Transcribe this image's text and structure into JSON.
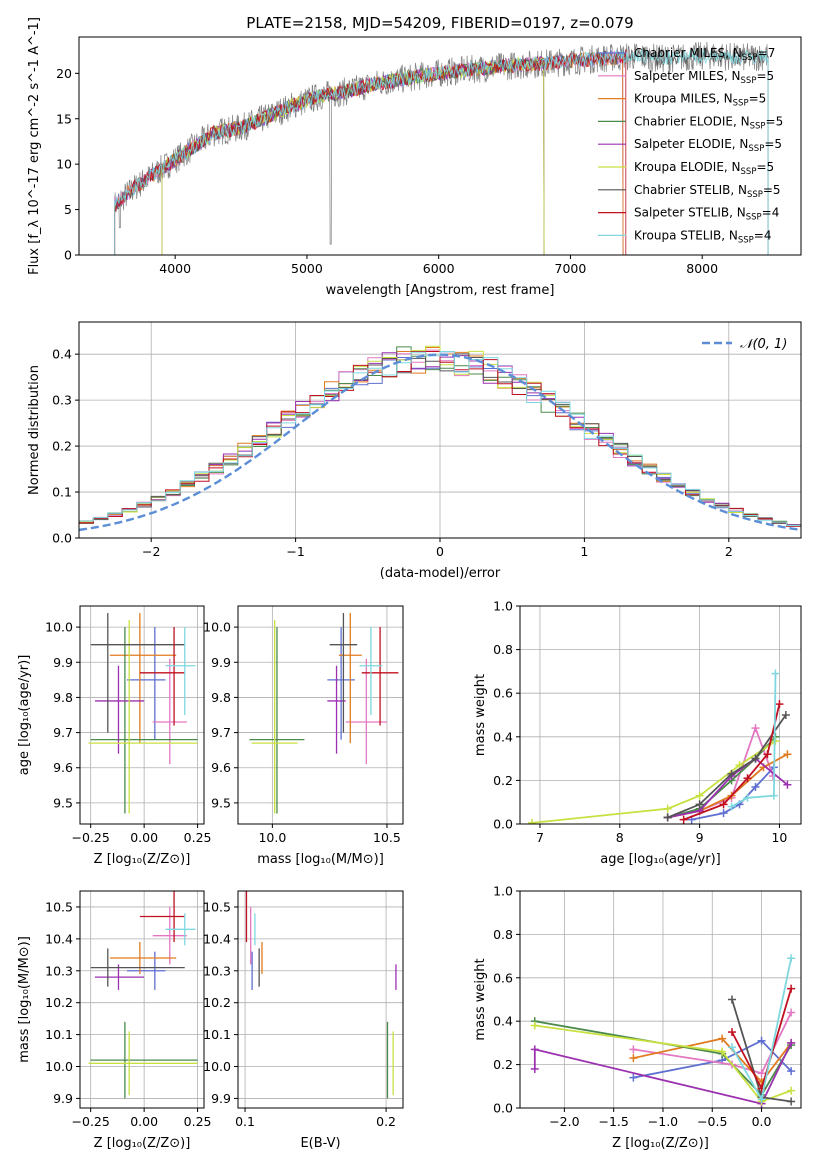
{
  "figure_title": "PLATE=2158, MJD=54209, FIBERID=0197, z=0.079",
  "colors": {
    "Chabrier MILES": "#5f6fd0",
    "Salpeter MILES": "#e377c2",
    "Kroupa MILES": "#e07b20",
    "Chabrier ELODIE": "#4a8a4a",
    "Salpeter ELODIE": "#9b30b0",
    "Kroupa ELODIE": "#c8e040",
    "Chabrier STELIB": "#555555",
    "Salpeter STELIB": "#c01020",
    "Kroupa STELIB": "#7fd8e0",
    "gaussian": "#5b8ed6"
  },
  "chart_data": [
    {
      "id": "spectrum",
      "type": "line",
      "xlabel": "wavelength [Angstrom, rest frame]",
      "ylabel": "Flux [f_λ 10^-17 erg cm^-2 s^-1 A^-1]",
      "xlim": [
        3270,
        8750
      ],
      "ylim": [
        0,
        24
      ],
      "xticks": [
        4000,
        5000,
        6000,
        7000,
        8000
      ],
      "yticks": [
        0,
        5,
        10,
        15,
        20
      ],
      "grid": false,
      "legend_position": "right",
      "legend": [
        "Chabrier MILES, N_SSP=7",
        "Salpeter MILES, N_SSP=5",
        "Kroupa MILES, N_SSP=5",
        "Chabrier ELODIE, N_SSP=5",
        "Salpeter ELODIE, N_SSP=5",
        "Kroupa ELODIE, N_SSP=5",
        "Chabrier STELIB, N_SSP=5",
        "Salpeter STELIB, N_SSP=4",
        "Kroupa STELIB, N_SSP=4"
      ],
      "data_continuum": [
        [
          3540,
          5.5
        ],
        [
          3700,
          7.5
        ],
        [
          3900,
          9.5
        ],
        [
          4100,
          11.5
        ],
        [
          4300,
          13.5
        ],
        [
          4500,
          14.0
        ],
        [
          4700,
          15.2
        ],
        [
          4900,
          16.5
        ],
        [
          5100,
          17.5
        ],
        [
          5300,
          18.0
        ],
        [
          5500,
          18.8
        ],
        [
          5700,
          19.3
        ],
        [
          5900,
          19.8
        ],
        [
          6100,
          20.2
        ],
        [
          6300,
          20.5
        ],
        [
          6500,
          20.8
        ],
        [
          6700,
          21.0
        ],
        [
          6900,
          21.2
        ],
        [
          7100,
          21.5
        ],
        [
          7300,
          21.7
        ],
        [
          7500,
          21.9
        ],
        [
          7700,
          21.6
        ],
        [
          7900,
          21.8
        ],
        [
          8100,
          22.0
        ],
        [
          8300,
          21.7
        ],
        [
          8500,
          21.9
        ]
      ]
    },
    {
      "id": "residuals",
      "type": "histogram",
      "xlabel": "(data-model)/error",
      "ylabel": "Normed distribution",
      "xlim": [
        -2.5,
        2.5
      ],
      "ylim": [
        0,
        0.47
      ],
      "xticks": [
        -2,
        -1,
        0,
        1,
        2
      ],
      "yticks": [
        0.0,
        0.1,
        0.2,
        0.3,
        0.4
      ],
      "grid": true,
      "legend_position": "top-right",
      "legend": [
        "𝒩(0, 1)"
      ],
      "bin_width": 0.1
    },
    {
      "id": "age_vs_Z",
      "type": "errorbar",
      "xlabel": "Z [log10(Z/Z⊙)]",
      "ylabel": "age  [log10(age/yr)]",
      "xlim": [
        -0.3,
        0.28
      ],
      "ylim": [
        9.44,
        10.06
      ],
      "xticks": [
        -0.25,
        0.0,
        0.25
      ],
      "yticks": [
        9.5,
        9.6,
        9.7,
        9.8,
        9.9,
        10.0
      ],
      "grid": true,
      "points": [
        {
          "model": "Chabrier MILES",
          "x": 0.05,
          "xerr": [
            0.13,
            0.05
          ],
          "y": 9.85,
          "yerr": [
            0.17,
            0.15
          ]
        },
        {
          "model": "Salpeter MILES",
          "x": 0.12,
          "xerr": [
            0.08,
            0.08
          ],
          "y": 9.73,
          "yerr": [
            0.12,
            0.18
          ]
        },
        {
          "model": "Kroupa MILES",
          "x": -0.02,
          "xerr": [
            0.14,
            0.17
          ],
          "y": 9.92,
          "yerr": [
            0.25,
            0.12
          ]
        },
        {
          "model": "Chabrier ELODIE",
          "x": -0.09,
          "xerr": [
            0.16,
            0.34
          ],
          "y": 9.68,
          "yerr": [
            0.21,
            0.32
          ]
        },
        {
          "model": "Salpeter ELODIE",
          "x": -0.12,
          "xerr": [
            0.11,
            0.12
          ],
          "y": 9.79,
          "yerr": [
            0.15,
            0.1
          ]
        },
        {
          "model": "Kroupa ELODIE",
          "x": -0.07,
          "xerr": [
            0.19,
            0.32
          ],
          "y": 9.67,
          "yerr": [
            0.2,
            0.35
          ]
        },
        {
          "model": "Chabrier STELIB",
          "x": -0.17,
          "xerr": [
            0.08,
            0.36
          ],
          "y": 9.95,
          "yerr": [
            0.25,
            0.09
          ]
        },
        {
          "model": "Salpeter STELIB",
          "x": 0.14,
          "xerr": [
            0.16,
            0.05
          ],
          "y": 9.87,
          "yerr": [
            0.15,
            0.13
          ]
        },
        {
          "model": "Kroupa STELIB",
          "x": 0.19,
          "xerr": [
            0.09,
            0.05
          ],
          "y": 9.89,
          "yerr": [
            0.14,
            0.11
          ]
        }
      ]
    },
    {
      "id": "age_vs_mass",
      "type": "errorbar",
      "xlabel": "mass [log10(M/M⊙)]",
      "ylabel": "",
      "xlim": [
        9.85,
        10.57
      ],
      "ylim": [
        9.44,
        10.06
      ],
      "xticks": [
        10.0,
        10.5
      ],
      "yticks": [
        9.5,
        9.6,
        9.7,
        9.8,
        9.9,
        10.0
      ],
      "grid": true,
      "points": [
        {
          "model": "Chabrier MILES",
          "x": 10.3,
          "xerr": [
            0.06,
            0.06
          ],
          "y": 9.85,
          "yerr": [
            0.17,
            0.15
          ]
        },
        {
          "model": "Salpeter MILES",
          "x": 10.41,
          "xerr": [
            0.09,
            0.09
          ],
          "y": 9.73,
          "yerr": [
            0.12,
            0.18
          ]
        },
        {
          "model": "Kroupa MILES",
          "x": 10.34,
          "xerr": [
            0.05,
            0.05
          ],
          "y": 9.92,
          "yerr": [
            0.25,
            0.12
          ]
        },
        {
          "model": "Chabrier ELODIE",
          "x": 10.02,
          "xerr": [
            0.12,
            0.12
          ],
          "y": 9.68,
          "yerr": [
            0.21,
            0.32
          ]
        },
        {
          "model": "Salpeter ELODIE",
          "x": 10.28,
          "xerr": [
            0.04,
            0.04
          ],
          "y": 9.79,
          "yerr": [
            0.15,
            0.1
          ]
        },
        {
          "model": "Kroupa ELODIE",
          "x": 10.01,
          "xerr": [
            0.1,
            0.1
          ],
          "y": 9.67,
          "yerr": [
            0.2,
            0.35
          ]
        },
        {
          "model": "Chabrier STELIB",
          "x": 10.31,
          "xerr": [
            0.06,
            0.06
          ],
          "y": 9.95,
          "yerr": [
            0.25,
            0.09
          ]
        },
        {
          "model": "Salpeter STELIB",
          "x": 10.47,
          "xerr": [
            0.08,
            0.08
          ],
          "y": 9.87,
          "yerr": [
            0.15,
            0.13
          ]
        },
        {
          "model": "Kroupa STELIB",
          "x": 10.43,
          "xerr": [
            0.05,
            0.05
          ],
          "y": 9.89,
          "yerr": [
            0.14,
            0.11
          ]
        }
      ]
    },
    {
      "id": "mass_weight_vs_age",
      "type": "line",
      "xlabel": "age  [log10(age/yr)]",
      "ylabel": "mass weight",
      "xlim": [
        6.75,
        10.27
      ],
      "ylim": [
        0,
        1.0
      ],
      "xticks": [
        7,
        8,
        9,
        10
      ],
      "yticks": [
        0.0,
        0.2,
        0.4,
        0.6,
        0.8,
        1.0
      ],
      "grid": true,
      "series": [
        {
          "model": "Chabrier MILES",
          "x": [
            8.9,
            9.3,
            9.5,
            9.7,
            9.93
          ],
          "y": [
            0.02,
            0.05,
            0.09,
            0.17,
            0.26
          ]
        },
        {
          "model": "Salpeter MILES",
          "x": [
            8.6,
            9.0,
            9.4,
            9.7,
            9.92
          ],
          "y": [
            0.03,
            0.06,
            0.12,
            0.44,
            0.22
          ]
        },
        {
          "model": "Kroupa MILES",
          "x": [
            8.6,
            9.0,
            9.4,
            9.8,
            10.1
          ],
          "y": [
            0.03,
            0.06,
            0.13,
            0.26,
            0.32
          ]
        },
        {
          "model": "Chabrier ELODIE",
          "x": [
            8.6,
            9.0,
            9.4,
            9.7,
            9.95
          ],
          "y": [
            0.03,
            0.07,
            0.2,
            0.3,
            0.4
          ]
        },
        {
          "model": "Salpeter ELODIE",
          "x": [
            8.6,
            9.0,
            9.4,
            9.7,
            10.1
          ],
          "y": [
            0.03,
            0.06,
            0.22,
            0.3,
            0.18
          ]
        },
        {
          "model": "Kroupa ELODIE",
          "x": [
            6.9,
            8.6,
            9.0,
            9.5,
            9.95
          ],
          "y": [
            0.005,
            0.07,
            0.13,
            0.27,
            0.38
          ]
        },
        {
          "model": "Chabrier STELIB",
          "x": [
            8.6,
            9.0,
            9.4,
            9.7,
            10.08
          ],
          "y": [
            0.03,
            0.09,
            0.23,
            0.3,
            0.5
          ]
        },
        {
          "model": "Salpeter STELIB",
          "x": [
            8.8,
            9.3,
            9.6,
            9.85,
            10.0
          ],
          "y": [
            0.02,
            0.09,
            0.21,
            0.32,
            0.55
          ]
        },
        {
          "model": "Kroupa STELIB",
          "x": [
            9.4,
            9.6,
            9.93,
            9.95
          ],
          "y": [
            0.08,
            0.12,
            0.13,
            0.69
          ]
        }
      ]
    },
    {
      "id": "mass_vs_Z",
      "type": "errorbar",
      "xlabel": "Z [log10(Z/Z⊙)]",
      "ylabel": "mass [log10(M/M⊙)]",
      "xlim": [
        -0.3,
        0.28
      ],
      "ylim": [
        9.87,
        10.55
      ],
      "xticks": [
        -0.25,
        0.0,
        0.25
      ],
      "yticks": [
        9.9,
        10.0,
        10.1,
        10.2,
        10.3,
        10.4,
        10.5
      ],
      "grid": true,
      "points": [
        {
          "model": "Chabrier MILES",
          "x": 0.05,
          "xerr": [
            0.13,
            0.05
          ],
          "y": 10.3,
          "yerr": [
            0.06,
            0.06
          ]
        },
        {
          "model": "Salpeter MILES",
          "x": 0.12,
          "xerr": [
            0.08,
            0.08
          ],
          "y": 10.41,
          "yerr": [
            0.09,
            0.09
          ]
        },
        {
          "model": "Kroupa MILES",
          "x": -0.02,
          "xerr": [
            0.14,
            0.17
          ],
          "y": 10.34,
          "yerr": [
            0.05,
            0.05
          ]
        },
        {
          "model": "Chabrier ELODIE",
          "x": -0.09,
          "xerr": [
            0.16,
            0.34
          ],
          "y": 10.02,
          "yerr": [
            0.12,
            0.12
          ]
        },
        {
          "model": "Salpeter ELODIE",
          "x": -0.12,
          "xerr": [
            0.11,
            0.12
          ],
          "y": 10.28,
          "yerr": [
            0.04,
            0.04
          ]
        },
        {
          "model": "Kroupa ELODIE",
          "x": -0.07,
          "xerr": [
            0.19,
            0.32
          ],
          "y": 10.01,
          "yerr": [
            0.1,
            0.1
          ]
        },
        {
          "model": "Chabrier STELIB",
          "x": -0.17,
          "xerr": [
            0.08,
            0.36
          ],
          "y": 10.31,
          "yerr": [
            0.06,
            0.06
          ]
        },
        {
          "model": "Salpeter STELIB",
          "x": 0.14,
          "xerr": [
            0.16,
            0.05
          ],
          "y": 10.47,
          "yerr": [
            0.08,
            0.08
          ]
        },
        {
          "model": "Kroupa STELIB",
          "x": 0.19,
          "xerr": [
            0.09,
            0.05
          ],
          "y": 10.43,
          "yerr": [
            0.05,
            0.05
          ]
        }
      ]
    },
    {
      "id": "mass_vs_ebv",
      "type": "errorbar",
      "xlabel": "E(B-V)",
      "ylabel": "",
      "xlim": [
        0.095,
        0.212
      ],
      "ylim": [
        9.87,
        10.55
      ],
      "xticks": [
        0.1,
        0.2
      ],
      "yticks": [
        9.9,
        10.0,
        10.1,
        10.2,
        10.3,
        10.4,
        10.5
      ],
      "grid": true,
      "points": [
        {
          "model": "Chabrier MILES",
          "x": 0.105,
          "xerr": [
            0,
            0
          ],
          "y": 10.3,
          "yerr": [
            0.06,
            0.06
          ]
        },
        {
          "model": "Salpeter MILES",
          "x": 0.104,
          "xerr": [
            0,
            0
          ],
          "y": 10.41,
          "yerr": [
            0.09,
            0.09
          ]
        },
        {
          "model": "Kroupa MILES",
          "x": 0.112,
          "xerr": [
            0,
            0
          ],
          "y": 10.34,
          "yerr": [
            0.05,
            0.05
          ]
        },
        {
          "model": "Chabrier ELODIE",
          "x": 0.201,
          "xerr": [
            0,
            0
          ],
          "y": 10.02,
          "yerr": [
            0.12,
            0.12
          ]
        },
        {
          "model": "Salpeter ELODIE",
          "x": 0.207,
          "xerr": [
            0,
            0
          ],
          "y": 10.28,
          "yerr": [
            0.04,
            0.04
          ]
        },
        {
          "model": "Kroupa ELODIE",
          "x": 0.205,
          "xerr": [
            0,
            0
          ],
          "y": 10.01,
          "yerr": [
            0.1,
            0.1
          ]
        },
        {
          "model": "Chabrier STELIB",
          "x": 0.11,
          "xerr": [
            0,
            0
          ],
          "y": 10.31,
          "yerr": [
            0.06,
            0.06
          ]
        },
        {
          "model": "Salpeter STELIB",
          "x": 0.101,
          "xerr": [
            0,
            0
          ],
          "y": 10.47,
          "yerr": [
            0.08,
            0.08
          ]
        },
        {
          "model": "Kroupa STELIB",
          "x": 0.107,
          "xerr": [
            0,
            0
          ],
          "y": 10.43,
          "yerr": [
            0.05,
            0.05
          ]
        }
      ]
    },
    {
      "id": "mass_weight_vs_Z",
      "type": "line",
      "xlabel": "Z [log10(Z/Z⊙)]",
      "ylabel": "mass weight",
      "xlim": [
        -2.45,
        0.4
      ],
      "ylim": [
        0,
        1.0
      ],
      "xticks": [
        -2.0,
        -1.5,
        -1.0,
        -0.5,
        0.0
      ],
      "yticks": [
        0.0,
        0.2,
        0.4,
        0.6,
        0.8,
        1.0
      ],
      "grid": true,
      "series": [
        {
          "model": "Chabrier MILES",
          "x": [
            -1.3,
            -0.4,
            0.0,
            0.3
          ],
          "y": [
            0.14,
            0.22,
            0.31,
            0.17
          ]
        },
        {
          "model": "Salpeter MILES",
          "x": [
            -1.3,
            -0.3,
            0.0,
            0.3
          ],
          "y": [
            0.27,
            0.2,
            0.16,
            0.44
          ]
        },
        {
          "model": "Kroupa MILES",
          "x": [
            -1.3,
            -0.4,
            0.0,
            0.3
          ],
          "y": [
            0.23,
            0.32,
            0.12,
            0.3
          ]
        },
        {
          "model": "Chabrier ELODIE",
          "x": [
            -2.3,
            -0.4,
            0.0,
            0.3
          ],
          "y": [
            0.4,
            0.25,
            0.06,
            0.29
          ]
        },
        {
          "model": "Salpeter ELODIE",
          "x": [
            -2.3,
            -2.3,
            0.0,
            0.3
          ],
          "y": [
            0.18,
            0.27,
            0.02,
            0.3
          ]
        },
        {
          "model": "Kroupa ELODIE",
          "x": [
            -2.3,
            -0.4,
            0.0,
            0.3
          ],
          "y": [
            0.38,
            0.26,
            0.03,
            0.08
          ]
        },
        {
          "model": "Chabrier STELIB",
          "x": [
            -0.3,
            0.0,
            0.3
          ],
          "y": [
            0.5,
            0.05,
            0.03
          ]
        },
        {
          "model": "Salpeter STELIB",
          "x": [
            -0.3,
            0.0,
            0.3
          ],
          "y": [
            0.35,
            0.09,
            0.55
          ]
        },
        {
          "model": "Kroupa STELIB",
          "x": [
            -0.3,
            0.0,
            0.3
          ],
          "y": [
            0.28,
            0.04,
            0.69
          ]
        }
      ]
    }
  ]
}
